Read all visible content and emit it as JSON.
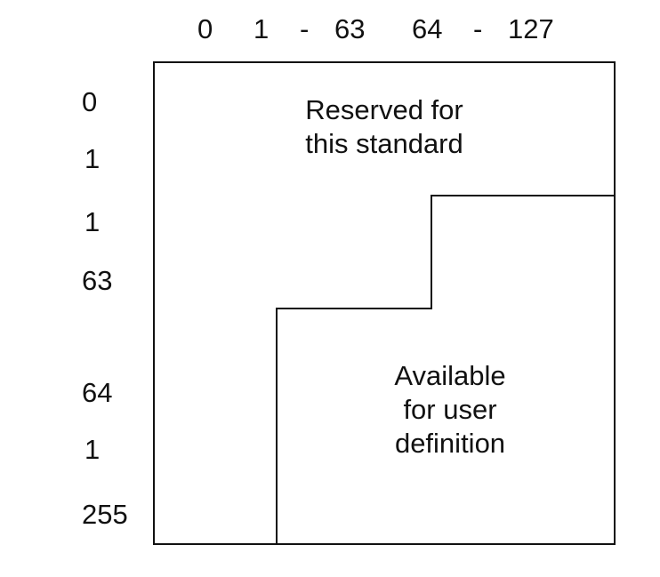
{
  "column_labels": {
    "first": "0",
    "range_start_1": "1",
    "dash_1": "-",
    "range_end_1": "63",
    "range_start_2": "64",
    "dash_2": "-",
    "range_end_2": "127"
  },
  "row_labels": [
    "0",
    "1",
    "1",
    "63",
    "64",
    "1",
    "255"
  ],
  "regions": {
    "reserved": {
      "line1": "Reserved for",
      "line2": "this standard"
    },
    "available": {
      "line1": "Available",
      "line2": "for user",
      "line3": "definition"
    }
  },
  "colors": {
    "line": "#111111",
    "background": "#ffffff"
  }
}
